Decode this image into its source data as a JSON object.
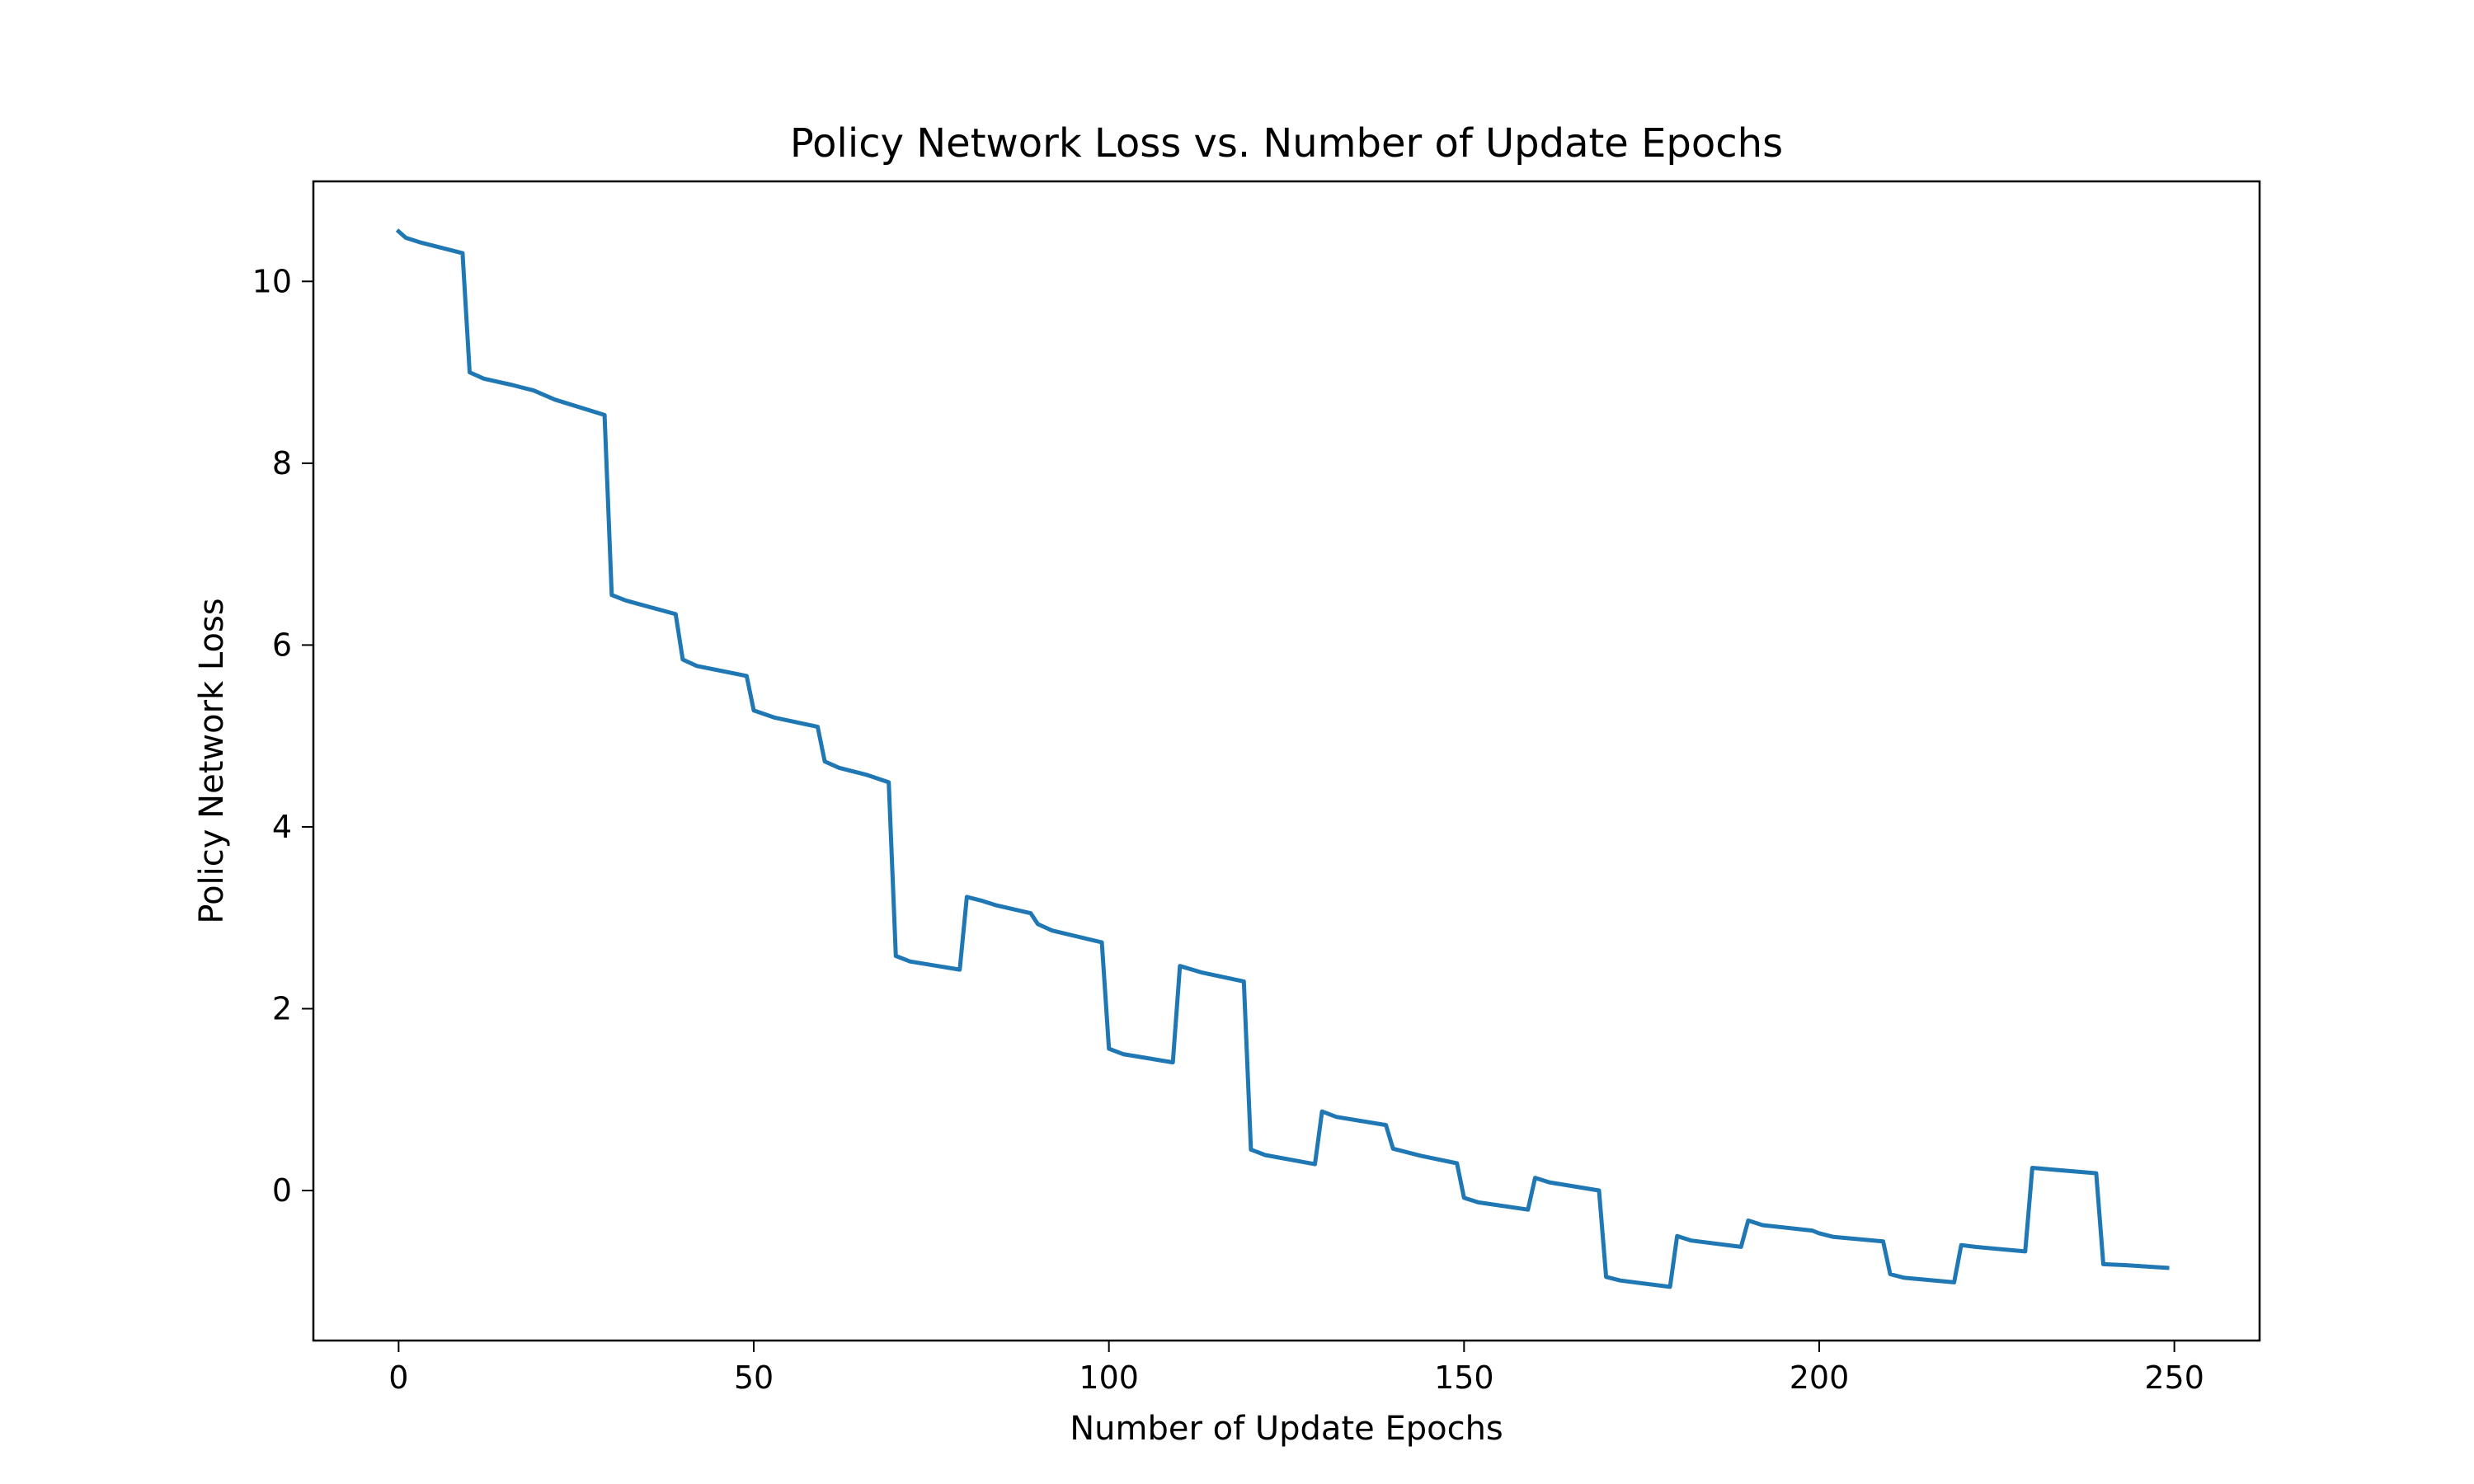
{
  "chart_data": {
    "type": "line",
    "title": "Policy Network Loss vs. Number of Update Epochs",
    "xlabel": "Number of Update Epochs",
    "ylabel": "Policy Network Loss",
    "xlim": [
      -12,
      262
    ],
    "ylim": [
      -1.65,
      11.1
    ],
    "xticks": [
      0,
      50,
      100,
      150,
      200,
      250
    ],
    "yticks": [
      0,
      2,
      4,
      6,
      8,
      10
    ],
    "grid": false,
    "legend": "none",
    "series": [
      {
        "color": "#1f77b4",
        "points": [
          [
            0,
            10.55
          ],
          [
            1,
            10.48
          ],
          [
            3,
            10.43
          ],
          [
            9,
            10.31
          ],
          [
            10,
            9.0
          ],
          [
            12,
            8.93
          ],
          [
            16,
            8.86
          ],
          [
            19,
            8.8
          ],
          [
            22,
            8.7
          ],
          [
            29,
            8.53
          ],
          [
            30,
            6.55
          ],
          [
            32,
            6.49
          ],
          [
            39,
            6.34
          ],
          [
            40,
            5.84
          ],
          [
            42,
            5.77
          ],
          [
            49,
            5.66
          ],
          [
            50,
            5.28
          ],
          [
            53,
            5.2
          ],
          [
            59,
            5.1
          ],
          [
            60,
            4.72
          ],
          [
            62,
            4.65
          ],
          [
            66,
            4.57
          ],
          [
            69,
            4.49
          ],
          [
            70,
            2.58
          ],
          [
            72,
            2.52
          ],
          [
            79,
            2.43
          ],
          [
            80,
            3.23
          ],
          [
            82,
            3.19
          ],
          [
            84,
            3.14
          ],
          [
            89,
            3.05
          ],
          [
            90,
            2.93
          ],
          [
            92,
            2.86
          ],
          [
            99,
            2.73
          ],
          [
            100,
            1.56
          ],
          [
            102,
            1.5
          ],
          [
            109,
            1.41
          ],
          [
            110,
            2.47
          ],
          [
            113,
            2.4
          ],
          [
            119,
            2.3
          ],
          [
            120,
            0.45
          ],
          [
            122,
            0.39
          ],
          [
            129,
            0.29
          ],
          [
            130,
            0.87
          ],
          [
            132,
            0.81
          ],
          [
            139,
            0.72
          ],
          [
            140,
            0.46
          ],
          [
            142,
            0.42
          ],
          [
            144,
            0.38
          ],
          [
            149,
            0.3
          ],
          [
            150,
            -0.08
          ],
          [
            152,
            -0.13
          ],
          [
            159,
            -0.21
          ],
          [
            160,
            0.14
          ],
          [
            162,
            0.09
          ],
          [
            169,
            0.0
          ],
          [
            170,
            -0.95
          ],
          [
            172,
            -0.99
          ],
          [
            179,
            -1.06
          ],
          [
            180,
            -0.5
          ],
          [
            182,
            -0.55
          ],
          [
            189,
            -0.62
          ],
          [
            190,
            -0.33
          ],
          [
            192,
            -0.38
          ],
          [
            199,
            -0.44
          ],
          [
            200,
            -0.47
          ],
          [
            202,
            -0.51
          ],
          [
            209,
            -0.56
          ],
          [
            210,
            -0.92
          ],
          [
            212,
            -0.96
          ],
          [
            219,
            -1.01
          ],
          [
            220,
            -0.6
          ],
          [
            222,
            -0.62
          ],
          [
            229,
            -0.67
          ],
          [
            230,
            0.25
          ],
          [
            233,
            0.23
          ],
          [
            239,
            0.19
          ],
          [
            240,
            -0.81
          ],
          [
            243,
            -0.82
          ],
          [
            249,
            -0.85
          ]
        ]
      }
    ]
  }
}
